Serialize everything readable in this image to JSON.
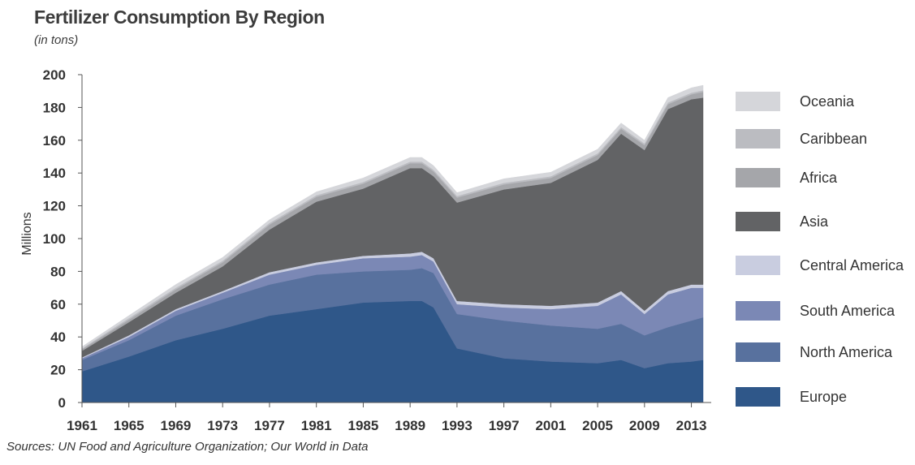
{
  "header": {
    "title": "Fertilizer Consumption By Region",
    "subtitle": "(in tons)"
  },
  "footer": {
    "source": "Sources: UN Food and Agriculture Organization; Our World in Data"
  },
  "chart_data": {
    "type": "area",
    "stacked": true,
    "title": "Fertilizer Consumption By Region",
    "subtitle": "(in tons)",
    "ylabel": "Millions",
    "xlabel": "",
    "ylim": [
      0,
      200
    ],
    "xlim": [
      1961,
      2014
    ],
    "yticks": [
      0,
      20,
      40,
      60,
      80,
      100,
      120,
      140,
      160,
      180,
      200
    ],
    "xticks": [
      1961,
      1965,
      1969,
      1973,
      1977,
      1981,
      1985,
      1989,
      1993,
      1997,
      2001,
      2005,
      2009,
      2013
    ],
    "legend_position": "right",
    "grid": false,
    "x": [
      1961,
      1965,
      1969,
      1973,
      1977,
      1981,
      1985,
      1989,
      1990,
      1991,
      1993,
      1997,
      2001,
      2005,
      2007,
      2009,
      2011,
      2013,
      2014
    ],
    "series": [
      {
        "name": "Europe",
        "color": "#2f5789",
        "values": [
          19,
          28,
          38,
          45,
          53,
          57,
          61,
          62,
          62,
          58,
          33,
          27,
          25,
          24,
          26,
          21,
          24,
          25,
          26
        ]
      },
      {
        "name": "North America",
        "color": "#58719e",
        "values": [
          7,
          10,
          15,
          18,
          19,
          21,
          19,
          19,
          20,
          21,
          21,
          23,
          22,
          21,
          22,
          20,
          22,
          25,
          26
        ]
      },
      {
        "name": "South America",
        "color": "#7b88b5",
        "values": [
          1,
          2,
          3,
          4,
          6,
          6,
          8,
          8,
          8,
          7,
          6,
          8,
          10,
          14,
          18,
          13,
          20,
          20,
          18
        ]
      },
      {
        "name": "Central America",
        "color": "#c9cde0",
        "values": [
          0.5,
          1,
          1,
          1,
          1.5,
          1.5,
          1.5,
          2,
          2,
          2,
          2,
          2,
          2,
          2,
          2,
          2,
          2,
          2,
          2
        ]
      },
      {
        "name": "Asia",
        "color": "#626365",
        "values": [
          4,
          8,
          10,
          15,
          26,
          37,
          41,
          52,
          51,
          50,
          60,
          70,
          75,
          87,
          96,
          98,
          111,
          113,
          114
        ]
      },
      {
        "name": "Africa",
        "color": "#a5a6aa",
        "values": [
          1,
          1.5,
          2,
          2.5,
          3,
          3,
          3,
          3,
          3,
          3,
          3,
          3,
          3,
          3,
          3,
          3,
          3,
          3,
          3.5
        ]
      },
      {
        "name": "Caribbean",
        "color": "#bbbcc1",
        "values": [
          0.5,
          1,
          1,
          1,
          1,
          1,
          1,
          1,
          1,
          1,
          1,
          1,
          1,
          1,
          1,
          1,
          1,
          1,
          1
        ]
      },
      {
        "name": "Oceania",
        "color": "#d5d6da",
        "values": [
          1,
          1.5,
          2,
          2,
          2,
          2,
          2.5,
          2.5,
          2.5,
          2.5,
          2,
          2.5,
          2.5,
          2.5,
          2.5,
          2,
          3,
          3,
          3
        ]
      }
    ],
    "legend_order": [
      "Oceania",
      "Caribbean",
      "Africa",
      "Asia",
      "Central America",
      "South America",
      "North America",
      "Europe"
    ]
  }
}
